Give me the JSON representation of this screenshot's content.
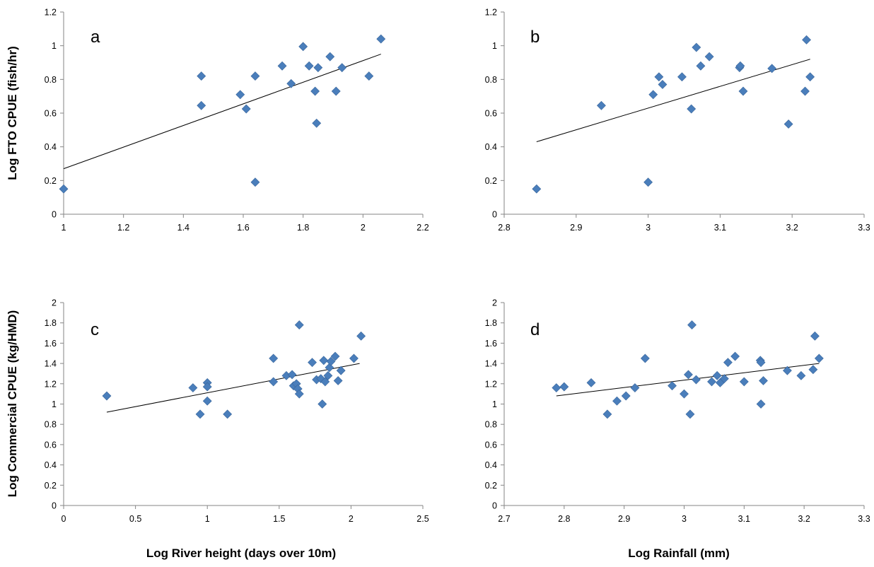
{
  "figure": {
    "ylabel_top": "Log  FTO CPUE (fish/hr)",
    "ylabel_bottom": "Log  Commercial CPUE (kg/HMD)",
    "xlabel_left": "Log  River height (days over 10m)",
    "xlabel_right": "Log  Rainfall (mm)"
  },
  "colors": {
    "marker": "#4a7ebb",
    "marker_edge": "#3a669b",
    "trendline": "#000000",
    "axis": "#868686"
  },
  "chart_data": [
    {
      "type": "scatter",
      "panel": "a",
      "title": "",
      "xlabel": "Log  River height (days over 10m)",
      "ylabel": "Log  FTO CPUE (fish/hr)",
      "xlim": [
        1,
        2.2
      ],
      "ylim": [
        0,
        1.2
      ],
      "xticks": [
        "1",
        "1.2",
        "1.4",
        "1.6",
        "1.8",
        "2",
        "2.2"
      ],
      "yticks": [
        "0",
        "0.2",
        "0.4",
        "0.6",
        "0.8",
        "1",
        "1.2"
      ],
      "trendline": {
        "x": [
          1,
          2.06
        ],
        "y": [
          0.27,
          0.95
        ]
      },
      "points": [
        {
          "x": 1.0,
          "y": 0.15
        },
        {
          "x": 1.46,
          "y": 0.82
        },
        {
          "x": 1.46,
          "y": 0.645
        },
        {
          "x": 1.59,
          "y": 0.71
        },
        {
          "x": 1.61,
          "y": 0.625
        },
        {
          "x": 1.64,
          "y": 0.82
        },
        {
          "x": 1.64,
          "y": 0.19
        },
        {
          "x": 1.73,
          "y": 0.88
        },
        {
          "x": 1.76,
          "y": 0.775
        },
        {
          "x": 1.8,
          "y": 0.995
        },
        {
          "x": 1.82,
          "y": 0.88
        },
        {
          "x": 1.84,
          "y": 0.73
        },
        {
          "x": 1.845,
          "y": 0.54
        },
        {
          "x": 1.85,
          "y": 0.87
        },
        {
          "x": 1.89,
          "y": 0.935
        },
        {
          "x": 1.91,
          "y": 0.73
        },
        {
          "x": 1.93,
          "y": 0.87
        },
        {
          "x": 2.02,
          "y": 0.82
        },
        {
          "x": 2.06,
          "y": 1.04
        }
      ]
    },
    {
      "type": "scatter",
      "panel": "b",
      "title": "",
      "xlabel": "Log  Rainfall (mm)",
      "ylabel": "Log  FTO CPUE (fish/hr)",
      "xlim": [
        2.8,
        3.3
      ],
      "ylim": [
        0,
        1.2
      ],
      "xticks": [
        "2.8",
        "2.9",
        "3",
        "3.1",
        "3.2",
        "3.3"
      ],
      "yticks": [
        "0",
        "0.2",
        "0.4",
        "0.6",
        "0.8",
        "1",
        "1.2"
      ],
      "trendline": {
        "x": [
          2.845,
          3.225
        ],
        "y": [
          0.43,
          0.92
        ]
      },
      "points": [
        {
          "x": 2.845,
          "y": 0.15
        },
        {
          "x": 2.935,
          "y": 0.645
        },
        {
          "x": 3.0,
          "y": 0.19
        },
        {
          "x": 3.007,
          "y": 0.71
        },
        {
          "x": 3.015,
          "y": 0.815
        },
        {
          "x": 3.02,
          "y": 0.77
        },
        {
          "x": 3.047,
          "y": 0.815
        },
        {
          "x": 3.06,
          "y": 0.625
        },
        {
          "x": 3.067,
          "y": 0.99
        },
        {
          "x": 3.073,
          "y": 0.88
        },
        {
          "x": 3.085,
          "y": 0.935
        },
        {
          "x": 3.127,
          "y": 0.87
        },
        {
          "x": 3.128,
          "y": 0.88
        },
        {
          "x": 3.132,
          "y": 0.73
        },
        {
          "x": 3.172,
          "y": 0.865
        },
        {
          "x": 3.195,
          "y": 0.535
        },
        {
          "x": 3.218,
          "y": 0.73
        },
        {
          "x": 3.22,
          "y": 1.035
        },
        {
          "x": 3.225,
          "y": 0.815
        }
      ]
    },
    {
      "type": "scatter",
      "panel": "c",
      "title": "",
      "xlabel": "Log  River height (days over 10m)",
      "ylabel": "Log  Commercial CPUE (kg/HMD)",
      "xlim": [
        0,
        2.5
      ],
      "ylim": [
        0,
        2
      ],
      "xticks": [
        "0",
        "0.5",
        "1",
        "1.5",
        "2",
        "2.5"
      ],
      "yticks": [
        "0",
        "0.2",
        "0.4",
        "0.6",
        "0.8",
        "1",
        "1.2",
        "1.4",
        "1.6",
        "1.8",
        "2"
      ],
      "trendline": {
        "x": [
          0.3,
          2.06
        ],
        "y": [
          0.92,
          1.4
        ]
      },
      "points": [
        {
          "x": 0.3,
          "y": 1.08
        },
        {
          "x": 0.9,
          "y": 1.16
        },
        {
          "x": 0.95,
          "y": 0.9
        },
        {
          "x": 1.0,
          "y": 1.21
        },
        {
          "x": 1.0,
          "y": 1.17
        },
        {
          "x": 1.0,
          "y": 1.03
        },
        {
          "x": 1.14,
          "y": 0.9
        },
        {
          "x": 1.46,
          "y": 1.45
        },
        {
          "x": 1.46,
          "y": 1.22
        },
        {
          "x": 1.55,
          "y": 1.28
        },
        {
          "x": 1.59,
          "y": 1.29
        },
        {
          "x": 1.6,
          "y": 1.18
        },
        {
          "x": 1.62,
          "y": 1.2
        },
        {
          "x": 1.63,
          "y": 1.15
        },
        {
          "x": 1.64,
          "y": 1.1
        },
        {
          "x": 1.64,
          "y": 1.78
        },
        {
          "x": 1.73,
          "y": 1.41
        },
        {
          "x": 1.76,
          "y": 1.24
        },
        {
          "x": 1.79,
          "y": 1.25
        },
        {
          "x": 1.8,
          "y": 1.0
        },
        {
          "x": 1.81,
          "y": 1.43
        },
        {
          "x": 1.82,
          "y": 1.22
        },
        {
          "x": 1.84,
          "y": 1.28
        },
        {
          "x": 1.85,
          "y": 1.36
        },
        {
          "x": 1.86,
          "y": 1.42
        },
        {
          "x": 1.89,
          "y": 1.47
        },
        {
          "x": 1.91,
          "y": 1.23
        },
        {
          "x": 1.93,
          "y": 1.33
        },
        {
          "x": 2.02,
          "y": 1.45
        },
        {
          "x": 2.07,
          "y": 1.67
        }
      ]
    },
    {
      "type": "scatter",
      "panel": "d",
      "title": "",
      "xlabel": "Log  Rainfall (mm)",
      "ylabel": "Log  Commercial CPUE (kg/HMD)",
      "xlim": [
        2.7,
        3.3
      ],
      "ylim": [
        0,
        2
      ],
      "xticks": [
        "2.7",
        "2.8",
        "2.9",
        "3",
        "3.1",
        "3.2",
        "3.3"
      ],
      "yticks": [
        "0",
        "0.2",
        "0.4",
        "0.6",
        "0.8",
        "1",
        "1.2",
        "1.4",
        "1.6",
        "1.8",
        "2"
      ],
      "trendline": {
        "x": [
          2.787,
          3.225
        ],
        "y": [
          1.08,
          1.4
        ]
      },
      "points": [
        {
          "x": 2.787,
          "y": 1.16
        },
        {
          "x": 2.8,
          "y": 1.17
        },
        {
          "x": 2.845,
          "y": 1.21
        },
        {
          "x": 2.872,
          "y": 0.9
        },
        {
          "x": 2.888,
          "y": 1.03
        },
        {
          "x": 2.903,
          "y": 1.08
        },
        {
          "x": 2.918,
          "y": 1.16
        },
        {
          "x": 2.935,
          "y": 1.45
        },
        {
          "x": 2.98,
          "y": 1.18
        },
        {
          "x": 3.0,
          "y": 1.1
        },
        {
          "x": 3.007,
          "y": 1.29
        },
        {
          "x": 3.01,
          "y": 0.9
        },
        {
          "x": 3.013,
          "y": 1.78
        },
        {
          "x": 3.02,
          "y": 1.24
        },
        {
          "x": 3.046,
          "y": 1.22
        },
        {
          "x": 3.055,
          "y": 1.28
        },
        {
          "x": 3.06,
          "y": 1.21
        },
        {
          "x": 3.067,
          "y": 1.25
        },
        {
          "x": 3.073,
          "y": 1.41
        },
        {
          "x": 3.085,
          "y": 1.47
        },
        {
          "x": 3.1,
          "y": 1.22
        },
        {
          "x": 3.127,
          "y": 1.43
        },
        {
          "x": 3.128,
          "y": 1.41
        },
        {
          "x": 3.128,
          "y": 1.0
        },
        {
          "x": 3.132,
          "y": 1.23
        },
        {
          "x": 3.172,
          "y": 1.33
        },
        {
          "x": 3.195,
          "y": 1.28
        },
        {
          "x": 3.215,
          "y": 1.34
        },
        {
          "x": 3.218,
          "y": 1.67
        },
        {
          "x": 3.225,
          "y": 1.45
        }
      ]
    }
  ]
}
